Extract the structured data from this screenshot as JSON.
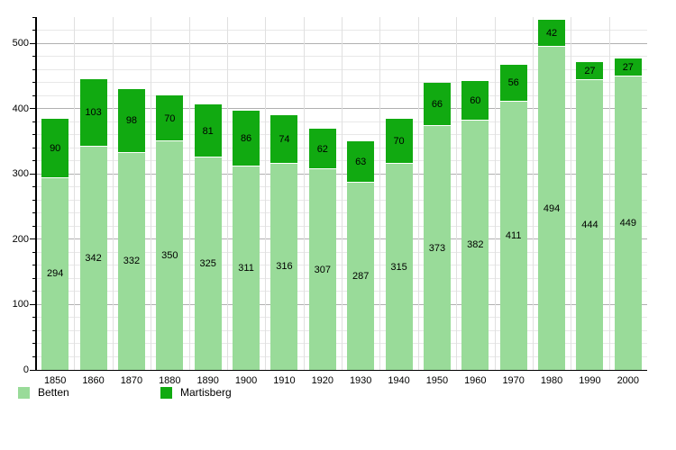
{
  "chart_data": {
    "type": "bar",
    "stacked": true,
    "title": "",
    "xlabel": "",
    "ylabel": "",
    "categories": [
      "1850",
      "1860",
      "1870",
      "1880",
      "1890",
      "1900",
      "1910",
      "1920",
      "1930",
      "1940",
      "1950",
      "1960",
      "1970",
      "1980",
      "1990",
      "2000"
    ],
    "series": [
      {
        "name": "Betten",
        "color": "#99db99",
        "values": [
          294,
          342,
          332,
          350,
          325,
          311,
          316,
          307,
          287,
          315,
          373,
          382,
          411,
          494,
          444,
          449
        ]
      },
      {
        "name": "Martisberg",
        "color": "#11aa11",
        "values": [
          90,
          103,
          98,
          70,
          81,
          86,
          74,
          62,
          63,
          70,
          66,
          60,
          56,
          42,
          27,
          27
        ]
      }
    ],
    "totals": [
      384,
      445,
      430,
      420,
      406,
      397,
      390,
      369,
      350,
      385,
      439,
      442,
      467,
      536,
      471,
      476
    ],
    "ylim": [
      0,
      540
    ],
    "y_major_step": 100,
    "y_minor_step": 20,
    "y_tick_labels": [
      "0",
      "100",
      "200",
      "300",
      "400",
      "500"
    ],
    "grid": true,
    "value_labels": true,
    "legend_position": "bottom",
    "colors": {
      "background": "#ffffff",
      "axis": "#000000",
      "grid_major": "#b0b0b0",
      "grid_minor": "#e8e8e8",
      "grid_vertical": "#e0e0e0",
      "value_label_text": "#000000"
    }
  }
}
